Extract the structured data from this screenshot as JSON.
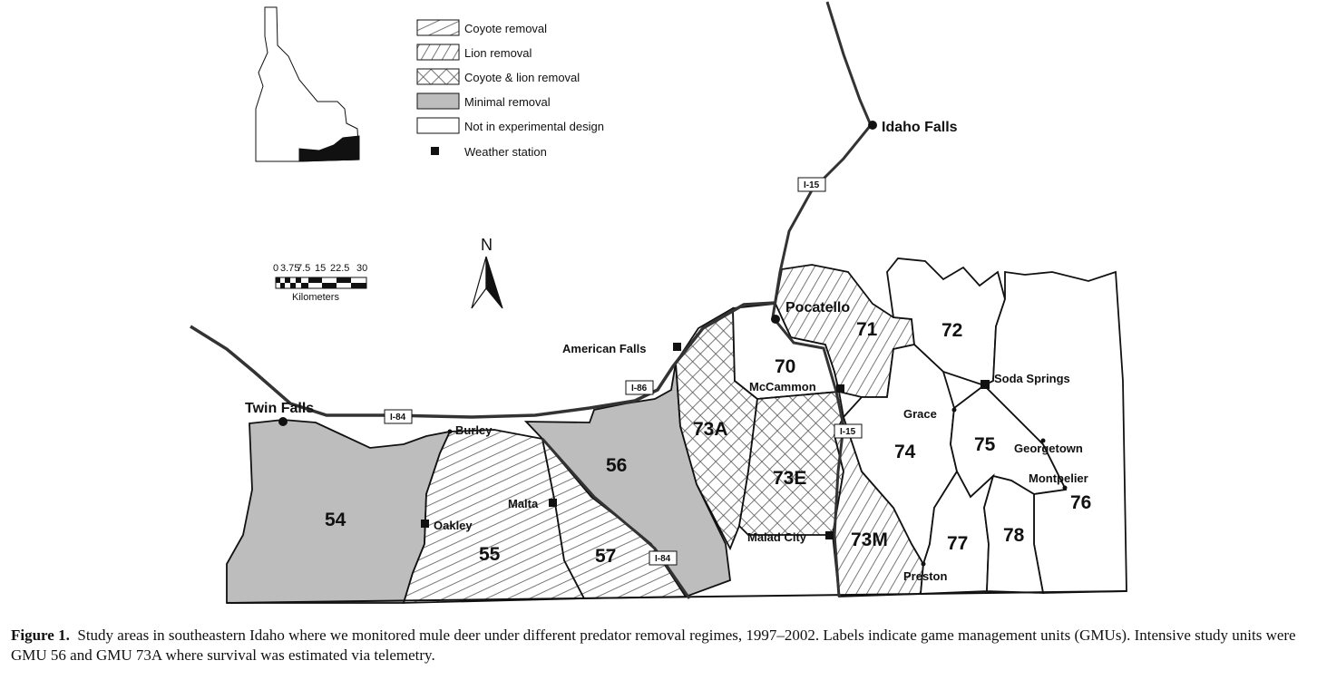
{
  "legend": {
    "items": [
      {
        "label": "Coyote removal",
        "fill": "coyote"
      },
      {
        "label": "Lion removal",
        "fill": "lion"
      },
      {
        "label": "Coyote & lion removal",
        "fill": "both"
      },
      {
        "label": "Minimal removal",
        "fill": "minimal"
      },
      {
        "label": "Not in experimental design",
        "fill": "none"
      }
    ],
    "weather_station_label": "Weather station"
  },
  "north_label": "N",
  "scale": {
    "ticks": [
      "0",
      "3.75",
      "7.5",
      "15",
      "22.5",
      "30"
    ],
    "unit": "Kilometers"
  },
  "highways": [
    "I-15",
    "I-86",
    "I-84",
    "I-15",
    "I-84"
  ],
  "cities": [
    "Idaho Falls",
    "Pocatello",
    "Twin Falls"
  ],
  "towns": [
    "American Falls",
    "McCammon",
    "Burley",
    "Oakley",
    "Malta",
    "Malad City",
    "Grace",
    "Soda Springs",
    "Georgetown",
    "Montpelier",
    "Preston"
  ],
  "gmus": [
    {
      "label": "54",
      "treatment": "Minimal removal"
    },
    {
      "label": "55",
      "treatment": "Coyote removal"
    },
    {
      "label": "56",
      "treatment": "Minimal removal"
    },
    {
      "label": "57",
      "treatment": "Coyote removal"
    },
    {
      "label": "70",
      "treatment": "Not in experimental design"
    },
    {
      "label": "71",
      "treatment": "Lion removal"
    },
    {
      "label": "72",
      "treatment": "Not in experimental design"
    },
    {
      "label": "73A",
      "treatment": "Coyote & lion removal"
    },
    {
      "label": "73E",
      "treatment": "Coyote & lion removal"
    },
    {
      "label": "73M",
      "treatment": "Lion removal"
    },
    {
      "label": "74",
      "treatment": "Not in experimental design"
    },
    {
      "label": "75",
      "treatment": "Not in experimental design"
    },
    {
      "label": "76",
      "treatment": "Not in experimental design"
    },
    {
      "label": "77",
      "treatment": "Not in experimental design"
    },
    {
      "label": "78",
      "treatment": "Not in experimental design"
    }
  ],
  "caption": {
    "label": "Figure 1.",
    "text": "Study areas in southeastern Idaho where we monitored mule deer under different predator removal regimes, 1997–2002. Labels indicate game management units (GMUs). Intensive study units were GMU 56 and GMU 73A where survival was estimated via telemetry."
  },
  "colors": {
    "minimal_fill": "#bdbdbd",
    "line": "#111111",
    "road": "#555555"
  }
}
